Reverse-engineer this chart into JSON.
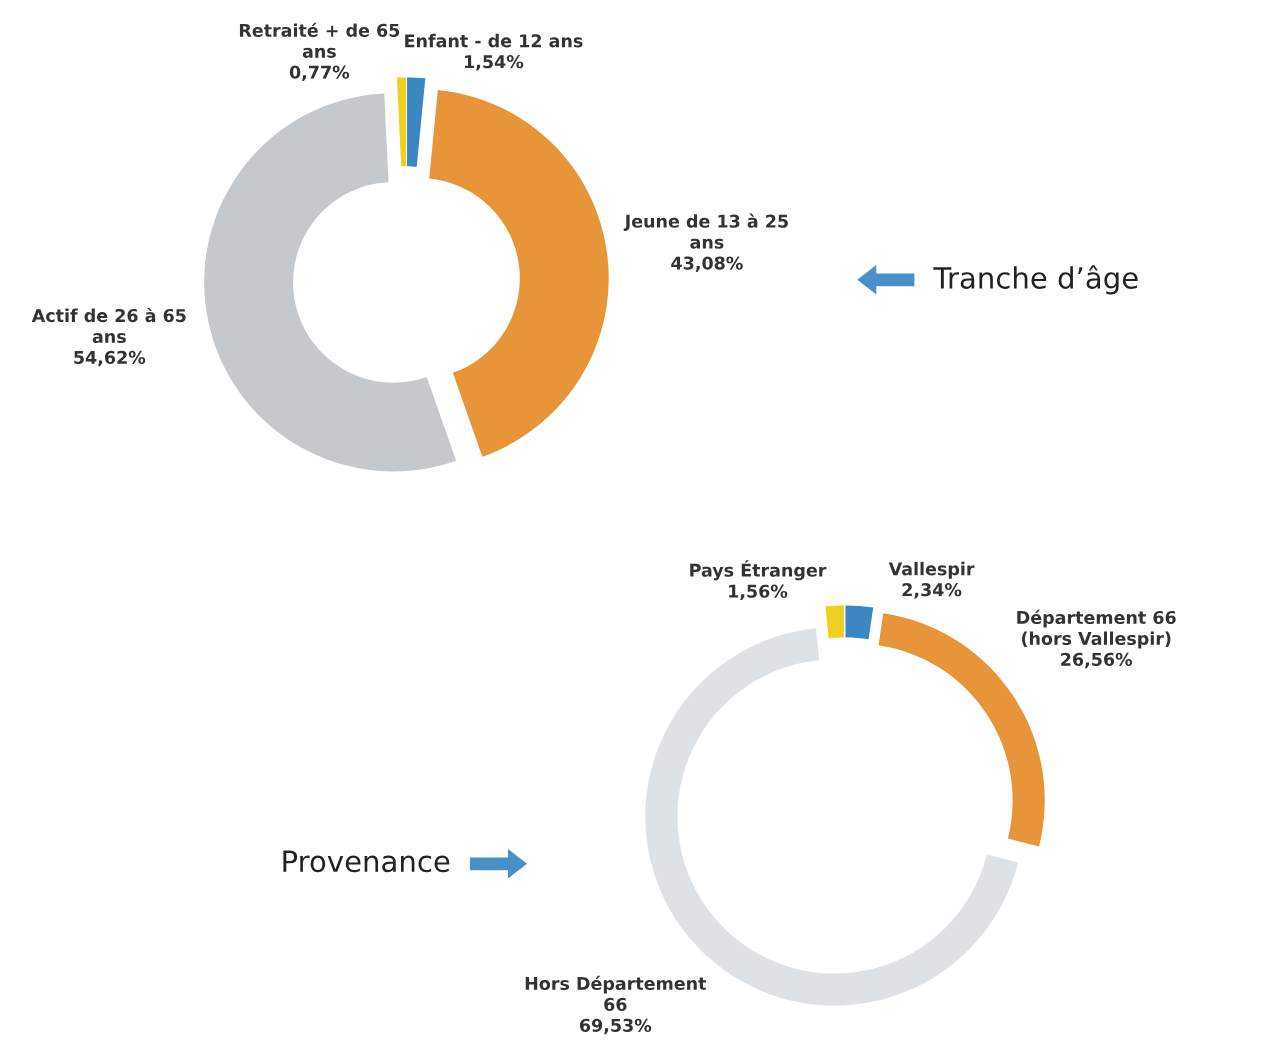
{
  "chart_data": [
    {
      "type": "donut",
      "title": "Tranche d’âge",
      "categories": [
        "Enfant - de 12 ans",
        "Jeune de 13 à 25\nans",
        "Actif de 26 à 65\nans",
        "Retraité + de 65\nans"
      ],
      "values": [
        1.54,
        43.08,
        54.62,
        0.77
      ],
      "value_labels": [
        "1,54%",
        "43,08%",
        "54,62%",
        "0,77%"
      ],
      "colors": [
        "#3b87c2",
        "#e8953a",
        "#c5c9cc",
        "#f0d01e"
      ],
      "legend": false
    },
    {
      "type": "donut",
      "title": "Provenance",
      "categories": [
        "Vallespir",
        "Département 66\n(hors Vallespir)",
        "Hors Département\n66",
        "Pays Étranger"
      ],
      "values": [
        2.34,
        26.56,
        69.53,
        1.56
      ],
      "value_labels": [
        "2,34%",
        "26,56%",
        "69,53%",
        "1,56%"
      ],
      "colors": [
        "#3b87c2",
        "#e8953a",
        "#dfe2e5",
        "#f0d01e"
      ],
      "legend": false
    }
  ]
}
